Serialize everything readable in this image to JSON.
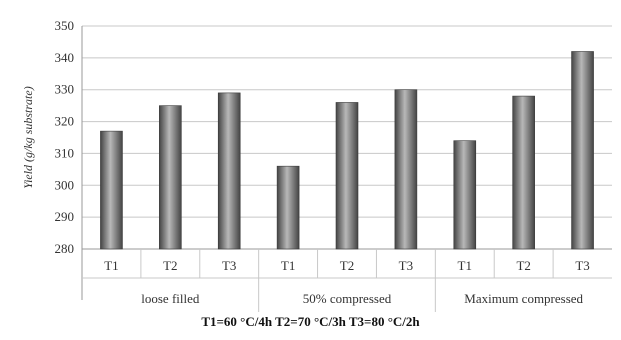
{
  "chart_data": {
    "type": "bar",
    "ylabel": "Yield (g/kg substrate)",
    "ylim": [
      280,
      350
    ],
    "yticks": [
      280,
      290,
      300,
      310,
      320,
      330,
      340,
      350
    ],
    "grid": true,
    "groups": [
      {
        "label": "loose filled",
        "categories": [
          "T1",
          "T2",
          "T3"
        ],
        "values": [
          317,
          325,
          329
        ]
      },
      {
        "label": "50% compressed",
        "categories": [
          "T1",
          "T2",
          "T3"
        ],
        "values": [
          306,
          326,
          330
        ]
      },
      {
        "label": "Maximum compressed",
        "categories": [
          "T1",
          "T2",
          "T3"
        ],
        "values": [
          314,
          328,
          342
        ]
      }
    ],
    "footer": "T1=60 °C/4h    T2=70 °C/3h    T3=80 °C/2h",
    "colors": {
      "bar": "#7a7a7a",
      "bar_light": "#b8b8b8",
      "bar_dark": "#444444",
      "grid": "#c8c8c8",
      "axis": "#999999"
    }
  }
}
